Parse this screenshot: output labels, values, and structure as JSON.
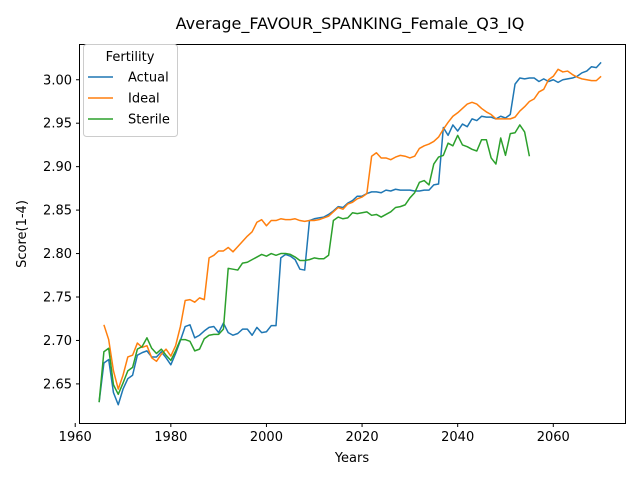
{
  "chart_data": {
    "type": "line",
    "title": "Average_FAVOUR_SPANKING_Female_Q3_IQ",
    "xlabel": "Years",
    "ylabel": "Score(1-4)",
    "xlim": [
      1961,
      2075
    ],
    "ylim": [
      2.605,
      3.04
    ],
    "xticks": [
      1960,
      1980,
      2000,
      2020,
      2040,
      2060
    ],
    "yticks": [
      2.65,
      2.7,
      2.75,
      2.8,
      2.85,
      2.9,
      2.95,
      3.0
    ],
    "grid": false,
    "legend": {
      "title": "Fertility",
      "placement": "top-left"
    },
    "series": [
      {
        "name": "Actual",
        "color": "#1f77b4",
        "points": [
          [
            1965,
            2.629
          ],
          [
            1966,
            2.674
          ],
          [
            1967,
            2.678
          ],
          [
            1968,
            2.64
          ],
          [
            1969,
            2.626
          ],
          [
            1970,
            2.644
          ],
          [
            1971,
            2.656
          ],
          [
            1972,
            2.66
          ],
          [
            1973,
            2.683
          ],
          [
            1974,
            2.686
          ],
          [
            1975,
            2.688
          ],
          [
            1976,
            2.681
          ],
          [
            1977,
            2.681
          ],
          [
            1978,
            2.687
          ],
          [
            1979,
            2.68
          ],
          [
            1980,
            2.672
          ],
          [
            1981,
            2.685
          ],
          [
            1982,
            2.7
          ],
          [
            1983,
            2.716
          ],
          [
            1984,
            2.718
          ],
          [
            1985,
            2.703
          ],
          [
            1986,
            2.706
          ],
          [
            1987,
            2.711
          ],
          [
            1988,
            2.715
          ],
          [
            1989,
            2.716
          ],
          [
            1990,
            2.709
          ],
          [
            1991,
            2.72
          ],
          [
            1992,
            2.709
          ],
          [
            1993,
            2.706
          ],
          [
            1994,
            2.708
          ],
          [
            1995,
            2.713
          ],
          [
            1996,
            2.713
          ],
          [
            1997,
            2.706
          ],
          [
            1998,
            2.715
          ],
          [
            1999,
            2.709
          ],
          [
            2000,
            2.71
          ],
          [
            2001,
            2.717
          ],
          [
            2002,
            2.717
          ],
          [
            2003,
            2.795
          ],
          [
            2004,
            2.799
          ],
          [
            2005,
            2.797
          ],
          [
            2006,
            2.793
          ],
          [
            2007,
            2.782
          ],
          [
            2008,
            2.781
          ],
          [
            2009,
            2.838
          ],
          [
            2010,
            2.84
          ],
          [
            2011,
            2.841
          ],
          [
            2012,
            2.842
          ],
          [
            2013,
            2.845
          ],
          [
            2014,
            2.849
          ],
          [
            2015,
            2.854
          ],
          [
            2016,
            2.853
          ],
          [
            2017,
            2.858
          ],
          [
            2018,
            2.861
          ],
          [
            2019,
            2.866
          ],
          [
            2020,
            2.866
          ],
          [
            2021,
            2.869
          ],
          [
            2022,
            2.871
          ],
          [
            2023,
            2.871
          ],
          [
            2024,
            2.87
          ],
          [
            2025,
            2.873
          ],
          [
            2026,
            2.872
          ],
          [
            2027,
            2.874
          ],
          [
            2028,
            2.873
          ],
          [
            2029,
            2.873
          ],
          [
            2030,
            2.873
          ],
          [
            2031,
            2.872
          ],
          [
            2032,
            2.872
          ],
          [
            2033,
            2.873
          ],
          [
            2034,
            2.873
          ],
          [
            2035,
            2.879
          ],
          [
            2036,
            2.88
          ],
          [
            2037,
            2.945
          ],
          [
            2038,
            2.936
          ],
          [
            2039,
            2.948
          ],
          [
            2040,
            2.941
          ],
          [
            2041,
            2.949
          ],
          [
            2042,
            2.946
          ],
          [
            2043,
            2.955
          ],
          [
            2044,
            2.953
          ],
          [
            2045,
            2.958
          ],
          [
            2046,
            2.957
          ],
          [
            2047,
            2.957
          ],
          [
            2048,
            2.955
          ],
          [
            2049,
            2.958
          ],
          [
            2050,
            2.956
          ],
          [
            2051,
            2.96
          ],
          [
            2052,
            2.995
          ],
          [
            2053,
            3.002
          ],
          [
            2054,
            3.001
          ],
          [
            2055,
            3.002
          ],
          [
            2056,
            3.002
          ],
          [
            2057,
            2.998
          ],
          [
            2058,
            3.001
          ],
          [
            2059,
            2.998
          ],
          [
            2060,
            3.0
          ],
          [
            2061,
            2.997
          ],
          [
            2062,
            3.0
          ],
          [
            2063,
            3.001
          ],
          [
            2064,
            3.002
          ],
          [
            2065,
            3.004
          ],
          [
            2066,
            3.008
          ],
          [
            2067,
            3.01
          ],
          [
            2068,
            3.015
          ],
          [
            2069,
            3.014
          ],
          [
            2070,
            3.02
          ]
        ]
      },
      {
        "name": "Ideal",
        "color": "#ff7f0e",
        "points": [
          [
            1966,
            2.718
          ],
          [
            1967,
            2.701
          ],
          [
            1968,
            2.665
          ],
          [
            1969,
            2.644
          ],
          [
            1970,
            2.66
          ],
          [
            1971,
            2.681
          ],
          [
            1972,
            2.683
          ],
          [
            1973,
            2.697
          ],
          [
            1974,
            2.692
          ],
          [
            1975,
            2.694
          ],
          [
            1976,
            2.68
          ],
          [
            1977,
            2.676
          ],
          [
            1978,
            2.684
          ],
          [
            1979,
            2.69
          ],
          [
            1980,
            2.682
          ],
          [
            1981,
            2.694
          ],
          [
            1982,
            2.716
          ],
          [
            1983,
            2.746
          ],
          [
            1984,
            2.747
          ],
          [
            1985,
            2.744
          ],
          [
            1986,
            2.749
          ],
          [
            1987,
            2.747
          ],
          [
            1988,
            2.795
          ],
          [
            1989,
            2.798
          ],
          [
            1990,
            2.803
          ],
          [
            1991,
            2.803
          ],
          [
            1992,
            2.807
          ],
          [
            1993,
            2.802
          ],
          [
            1994,
            2.808
          ],
          [
            1995,
            2.814
          ],
          [
            1996,
            2.82
          ],
          [
            1997,
            2.825
          ],
          [
            1998,
            2.836
          ],
          [
            1999,
            2.839
          ],
          [
            2000,
            2.832
          ],
          [
            2001,
            2.838
          ],
          [
            2002,
            2.838
          ],
          [
            2003,
            2.84
          ],
          [
            2004,
            2.839
          ],
          [
            2005,
            2.839
          ],
          [
            2006,
            2.84
          ],
          [
            2007,
            2.838
          ],
          [
            2008,
            2.837
          ],
          [
            2009,
            2.838
          ],
          [
            2010,
            2.838
          ],
          [
            2011,
            2.839
          ],
          [
            2012,
            2.841
          ],
          [
            2013,
            2.843
          ],
          [
            2014,
            2.848
          ],
          [
            2015,
            2.853
          ],
          [
            2016,
            2.851
          ],
          [
            2017,
            2.857
          ],
          [
            2018,
            2.859
          ],
          [
            2019,
            2.863
          ],
          [
            2020,
            2.865
          ],
          [
            2021,
            2.869
          ],
          [
            2022,
            2.912
          ],
          [
            2023,
            2.916
          ],
          [
            2024,
            2.91
          ],
          [
            2025,
            2.91
          ],
          [
            2026,
            2.908
          ],
          [
            2027,
            2.911
          ],
          [
            2028,
            2.913
          ],
          [
            2029,
            2.912
          ],
          [
            2030,
            2.91
          ],
          [
            2031,
            2.912
          ],
          [
            2032,
            2.921
          ],
          [
            2033,
            2.924
          ],
          [
            2034,
            2.926
          ],
          [
            2035,
            2.929
          ],
          [
            2036,
            2.934
          ],
          [
            2037,
            2.943
          ],
          [
            2038,
            2.951
          ],
          [
            2039,
            2.958
          ],
          [
            2040,
            2.962
          ],
          [
            2041,
            2.967
          ],
          [
            2042,
            2.972
          ],
          [
            2043,
            2.974
          ],
          [
            2044,
            2.972
          ],
          [
            2045,
            2.967
          ],
          [
            2046,
            2.963
          ],
          [
            2047,
            2.96
          ],
          [
            2048,
            2.955
          ],
          [
            2049,
            2.955
          ],
          [
            2050,
            2.955
          ],
          [
            2051,
            2.955
          ],
          [
            2052,
            2.957
          ],
          [
            2053,
            2.964
          ],
          [
            2054,
            2.969
          ],
          [
            2055,
            2.975
          ],
          [
            2056,
            2.978
          ],
          [
            2057,
            2.986
          ],
          [
            2058,
            2.989
          ],
          [
            2059,
            3.0
          ],
          [
            2060,
            3.004
          ],
          [
            2061,
            3.012
          ],
          [
            2062,
            3.009
          ],
          [
            2063,
            3.01
          ],
          [
            2064,
            3.006
          ],
          [
            2065,
            3.003
          ],
          [
            2066,
            3.001
          ],
          [
            2067,
            3.0
          ],
          [
            2068,
            2.999
          ],
          [
            2069,
            2.999
          ],
          [
            2070,
            3.004
          ]
        ]
      },
      {
        "name": "Sterile",
        "color": "#2ca02c",
        "points": [
          [
            1965,
            2.629
          ],
          [
            1966,
            2.687
          ],
          [
            1967,
            2.691
          ],
          [
            1968,
            2.649
          ],
          [
            1969,
            2.638
          ],
          [
            1970,
            2.651
          ],
          [
            1971,
            2.665
          ],
          [
            1972,
            2.669
          ],
          [
            1973,
            2.69
          ],
          [
            1974,
            2.693
          ],
          [
            1975,
            2.703
          ],
          [
            1976,
            2.691
          ],
          [
            1977,
            2.685
          ],
          [
            1978,
            2.69
          ],
          [
            1979,
            2.683
          ],
          [
            1980,
            2.677
          ],
          [
            1981,
            2.688
          ],
          [
            1982,
            2.701
          ],
          [
            1983,
            2.701
          ],
          [
            1984,
            2.699
          ],
          [
            1985,
            2.688
          ],
          [
            1986,
            2.69
          ],
          [
            1987,
            2.702
          ],
          [
            1988,
            2.706
          ],
          [
            1989,
            2.707
          ],
          [
            1990,
            2.707
          ],
          [
            1991,
            2.713
          ],
          [
            1992,
            2.783
          ],
          [
            1993,
            2.782
          ],
          [
            1994,
            2.781
          ],
          [
            1995,
            2.789
          ],
          [
            1996,
            2.79
          ],
          [
            1997,
            2.793
          ],
          [
            1998,
            2.796
          ],
          [
            1999,
            2.799
          ],
          [
            2000,
            2.797
          ],
          [
            2001,
            2.8
          ],
          [
            2002,
            2.798
          ],
          [
            2003,
            2.8
          ],
          [
            2004,
            2.8
          ],
          [
            2005,
            2.799
          ],
          [
            2006,
            2.796
          ],
          [
            2007,
            2.792
          ],
          [
            2008,
            2.792
          ],
          [
            2009,
            2.793
          ],
          [
            2010,
            2.795
          ],
          [
            2011,
            2.794
          ],
          [
            2012,
            2.794
          ],
          [
            2013,
            2.798
          ],
          [
            2014,
            2.838
          ],
          [
            2015,
            2.842
          ],
          [
            2016,
            2.84
          ],
          [
            2017,
            2.841
          ],
          [
            2018,
            2.847
          ],
          [
            2019,
            2.846
          ],
          [
            2020,
            2.847
          ],
          [
            2021,
            2.848
          ],
          [
            2022,
            2.844
          ],
          [
            2023,
            2.845
          ],
          [
            2024,
            2.842
          ],
          [
            2025,
            2.845
          ],
          [
            2026,
            2.848
          ],
          [
            2027,
            2.853
          ],
          [
            2028,
            2.854
          ],
          [
            2029,
            2.856
          ],
          [
            2030,
            2.864
          ],
          [
            2031,
            2.87
          ],
          [
            2032,
            2.882
          ],
          [
            2033,
            2.884
          ],
          [
            2034,
            2.879
          ],
          [
            2035,
            2.903
          ],
          [
            2036,
            2.911
          ],
          [
            2037,
            2.913
          ],
          [
            2038,
            2.927
          ],
          [
            2039,
            2.924
          ],
          [
            2040,
            2.936
          ],
          [
            2041,
            2.925
          ],
          [
            2042,
            2.923
          ],
          [
            2043,
            2.92
          ],
          [
            2044,
            2.918
          ],
          [
            2045,
            2.931
          ],
          [
            2046,
            2.931
          ],
          [
            2047,
            2.91
          ],
          [
            2048,
            2.903
          ],
          [
            2049,
            2.933
          ],
          [
            2050,
            2.913
          ],
          [
            2051,
            2.938
          ],
          [
            2052,
            2.939
          ],
          [
            2053,
            2.948
          ],
          [
            2054,
            2.94
          ],
          [
            2055,
            2.912
          ]
        ]
      }
    ]
  }
}
